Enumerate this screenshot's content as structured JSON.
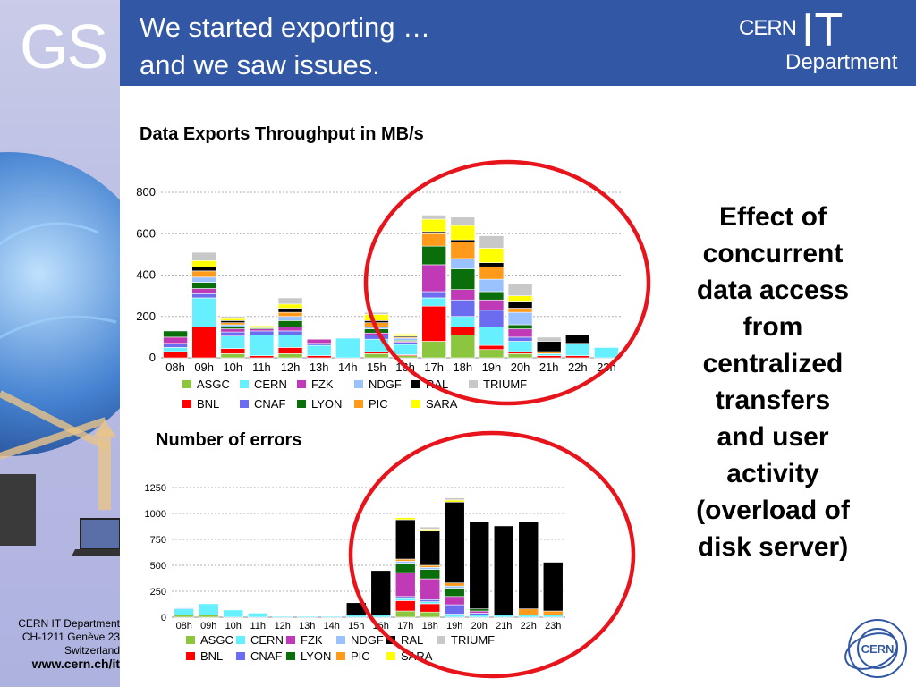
{
  "sidebar": {
    "logo_text": "GS"
  },
  "header": {
    "title": "We started exporting …\nand we saw issues.",
    "logo": {
      "cern": "CERN",
      "it": "IT",
      "department": "Department"
    }
  },
  "footer": {
    "line1": "CERN IT Department",
    "line2": "CH-1211 Genève 23",
    "line3": "Switzerland",
    "url": "www.cern.ch/it"
  },
  "callout_text": "Effect of\nconcurrent\ndata access\nfrom\ncentralized\ntransfers\nand user\nactivity\n(overload of\ndisk server)",
  "legend": [
    {
      "name": "ASGC",
      "color": "#8cc63f"
    },
    {
      "name": "CERN",
      "color": "#66f0ff"
    },
    {
      "name": "FZK",
      "color": "#c03ab8"
    },
    {
      "name": "NDGF",
      "color": "#99c2ff"
    },
    {
      "name": "RAL",
      "color": "#000000"
    },
    {
      "name": "TRIUMF",
      "color": "#c8c8c8"
    },
    {
      "name": "BNL",
      "color": "#ff0000"
    },
    {
      "name": "CNAF",
      "color": "#6c6cf0"
    },
    {
      "name": "LYON",
      "color": "#0a6e0a"
    },
    {
      "name": "PIC",
      "color": "#ff9a1a"
    },
    {
      "name": "SARA",
      "color": "#ffff00"
    }
  ],
  "chart_data": [
    {
      "type": "bar",
      "stacked": true,
      "title": "Data Exports Throughput in MB/s",
      "categories": [
        "08h",
        "09h",
        "10h",
        "11h",
        "12h",
        "13h",
        "14h",
        "15h",
        "16h",
        "17h",
        "18h",
        "19h",
        "20h",
        "21h",
        "22h",
        "23h"
      ],
      "ylim": [
        0,
        800
      ],
      "yticks": [
        0,
        200,
        400,
        600,
        800
      ],
      "grid": true,
      "legend_position": "bottom",
      "series": [
        {
          "name": "ASGC",
          "values": [
            0,
            0,
            20,
            0,
            20,
            0,
            0,
            20,
            10,
            80,
            110,
            40,
            20,
            0,
            0,
            0
          ]
        },
        {
          "name": "BNL",
          "values": [
            30,
            150,
            25,
            10,
            30,
            10,
            0,
            10,
            5,
            170,
            40,
            20,
            10,
            10,
            10,
            0
          ]
        },
        {
          "name": "CERN",
          "values": [
            20,
            140,
            60,
            100,
            60,
            50,
            95,
            60,
            50,
            40,
            50,
            90,
            50,
            10,
            60,
            50
          ]
        },
        {
          "name": "CNAF",
          "values": [
            20,
            20,
            20,
            20,
            20,
            10,
            0,
            20,
            10,
            30,
            80,
            80,
            20,
            0,
            0,
            0
          ]
        },
        {
          "name": "FZK",
          "values": [
            30,
            25,
            15,
            10,
            20,
            20,
            0,
            10,
            5,
            130,
            50,
            50,
            40,
            0,
            0,
            0
          ]
        },
        {
          "name": "LYON",
          "values": [
            30,
            30,
            10,
            5,
            30,
            0,
            0,
            20,
            5,
            90,
            100,
            40,
            20,
            0,
            0,
            0
          ]
        },
        {
          "name": "NDGF",
          "values": [
            0,
            25,
            10,
            0,
            20,
            0,
            0,
            10,
            10,
            0,
            50,
            60,
            60,
            0,
            0,
            0
          ]
        },
        {
          "name": "PIC",
          "values": [
            0,
            30,
            10,
            0,
            20,
            0,
            0,
            20,
            5,
            60,
            80,
            60,
            20,
            10,
            0,
            0
          ]
        },
        {
          "name": "RAL",
          "values": [
            0,
            20,
            10,
            0,
            20,
            0,
            0,
            10,
            5,
            10,
            10,
            20,
            30,
            50,
            40,
            0
          ]
        },
        {
          "name": "SARA",
          "values": [
            0,
            30,
            10,
            10,
            20,
            0,
            0,
            30,
            10,
            60,
            70,
            70,
            30,
            0,
            0,
            0
          ]
        },
        {
          "name": "TRIUMF",
          "values": [
            0,
            40,
            10,
            0,
            30,
            0,
            0,
            10,
            0,
            20,
            40,
            60,
            60,
            20,
            0,
            0
          ]
        }
      ]
    },
    {
      "type": "bar",
      "stacked": true,
      "title": "Number of errors",
      "categories": [
        "08h",
        "09h",
        "10h",
        "11h",
        "12h",
        "13h",
        "14h",
        "15h",
        "16h",
        "17h",
        "18h",
        "19h",
        "20h",
        "21h",
        "22h",
        "23h"
      ],
      "ylim": [
        0,
        1250
      ],
      "yticks": [
        0,
        250,
        500,
        750,
        1000,
        1250
      ],
      "grid": true,
      "legend_position": "bottom",
      "series": [
        {
          "name": "ASGC",
          "values": [
            20,
            20,
            0,
            0,
            0,
            0,
            0,
            0,
            0,
            60,
            50,
            0,
            0,
            0,
            0,
            0
          ]
        },
        {
          "name": "BNL",
          "values": [
            0,
            0,
            0,
            0,
            0,
            0,
            0,
            0,
            0,
            100,
            80,
            0,
            0,
            0,
            0,
            0
          ]
        },
        {
          "name": "CERN",
          "values": [
            60,
            110,
            70,
            40,
            10,
            10,
            10,
            20,
            20,
            20,
            20,
            30,
            20,
            20,
            20,
            20
          ]
        },
        {
          "name": "CNAF",
          "values": [
            0,
            0,
            0,
            0,
            0,
            0,
            0,
            0,
            0,
            20,
            20,
            90,
            20,
            0,
            0,
            0
          ]
        },
        {
          "name": "FZK",
          "values": [
            0,
            0,
            0,
            0,
            0,
            0,
            0,
            0,
            0,
            230,
            200,
            80,
            20,
            0,
            0,
            0
          ]
        },
        {
          "name": "LYON",
          "values": [
            0,
            0,
            0,
            0,
            0,
            0,
            0,
            0,
            0,
            90,
            90,
            80,
            20,
            0,
            0,
            0
          ]
        },
        {
          "name": "NDGF",
          "values": [
            10,
            0,
            0,
            0,
            0,
            0,
            0,
            0,
            0,
            20,
            20,
            20,
            0,
            0,
            0,
            0
          ]
        },
        {
          "name": "PIC",
          "values": [
            0,
            0,
            0,
            0,
            0,
            0,
            0,
            0,
            0,
            20,
            20,
            30,
            0,
            0,
            60,
            40
          ]
        },
        {
          "name": "RAL",
          "values": [
            0,
            0,
            0,
            0,
            0,
            0,
            0,
            120,
            430,
            380,
            330,
            780,
            840,
            860,
            840,
            470
          ]
        },
        {
          "name": "SARA",
          "values": [
            0,
            0,
            0,
            0,
            0,
            0,
            0,
            0,
            0,
            20,
            20,
            20,
            0,
            0,
            0,
            0
          ]
        },
        {
          "name": "TRIUMF",
          "values": [
            0,
            0,
            0,
            0,
            0,
            0,
            0,
            0,
            0,
            0,
            20,
            20,
            0,
            0,
            0,
            0
          ]
        }
      ]
    }
  ]
}
